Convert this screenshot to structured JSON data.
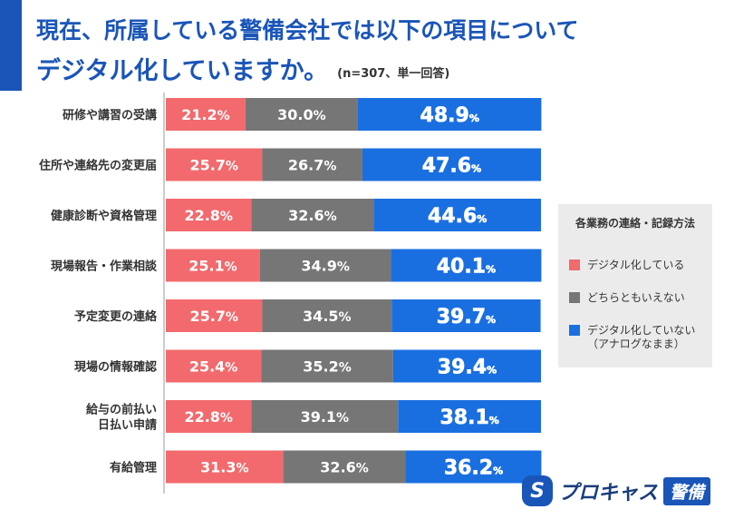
{
  "header": {
    "title_line1": "現在、所属している警備会社では以下の項目について",
    "title_line2": "デジタル化していますか。",
    "note": "(n=307、単一回答)"
  },
  "chart_data": {
    "type": "bar",
    "orientation": "horizontal",
    "stacked": true,
    "percent_scale": [
      0,
      100
    ],
    "categories": [
      "研修や講習の受講",
      "住所や連絡先の変更届",
      "健康診断や資格管理",
      "現場報告・作業相談",
      "予定変更の連絡",
      "現場の情報確認",
      "給与の前払い\n日払い申請",
      "有給管理"
    ],
    "series": [
      {
        "name": "デジタル化している",
        "color": "#f26a6d",
        "values": [
          21.2,
          25.7,
          22.8,
          25.1,
          25.7,
          25.4,
          22.8,
          31.3
        ]
      },
      {
        "name": "どちらともいえない",
        "color": "#767676",
        "values": [
          30.0,
          26.7,
          32.6,
          34.9,
          34.5,
          35.2,
          39.1,
          32.6
        ]
      },
      {
        "name": "デジタル化していない\n（アナログなまま）",
        "color": "#1a6fe0",
        "values": [
          48.9,
          47.6,
          44.6,
          40.1,
          39.7,
          39.4,
          38.1,
          36.2
        ]
      }
    ],
    "unit": "%",
    "legend": {
      "title": "各業務の連絡・記録方法",
      "position": "right"
    }
  },
  "logo": {
    "mark": "S",
    "text": "プロキャス",
    "badge": "警備"
  }
}
